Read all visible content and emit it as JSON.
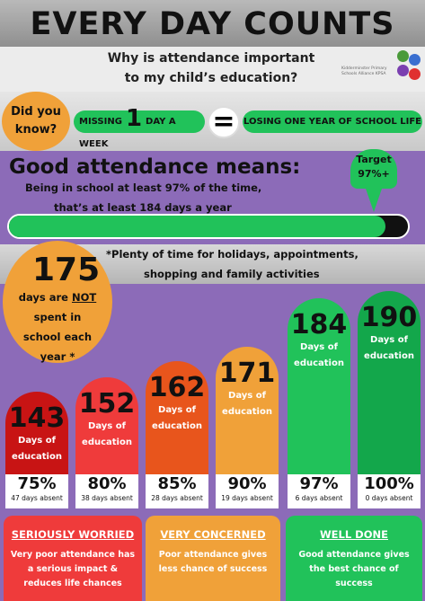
{
  "title": "EVERY DAY COUNTS",
  "subtitle": [
    "Why is attendance important",
    "to my child’s education?"
  ],
  "school_name": "Kidderminster Primary Schools Alliance KPSA",
  "logo_colors": [
    "#4a9a3a",
    "#3a6fd0",
    "#7a3fb0",
    "#e03030"
  ],
  "did_you_know": [
    "Did you",
    "know?"
  ],
  "missing_left": "MISSING",
  "missing_num": "1",
  "missing_right": "DAY A WEEK",
  "equals": "=",
  "losing": "LOSING ONE YEAR OF SCHOOL LIFE",
  "good_heading": "Good attendance means:",
  "good_lines": [
    "Being in school at least 97% of the time,",
    "that’s at least 184 days a year"
  ],
  "target_label": "Target",
  "target_value": "97%+",
  "target_fill_fraction": 0.97,
  "plenty": [
    "*Plenty of time for holidays, appointments,",
    "shopping and family activities"
  ],
  "not_spent_number": "175",
  "not_spent_lines": [
    "days are",
    "NOT",
    "spent in",
    "school each",
    "year *"
  ],
  "columns": [
    {
      "days": "143",
      "label1": "Days of",
      "label2": "education",
      "pct": "75%",
      "absent": "47 days absent",
      "color": "#c81414"
    },
    {
      "days": "152",
      "label1": "Days of",
      "label2": "education",
      "pct": "80%",
      "absent": "38 days absent",
      "color": "#ef3b3b"
    },
    {
      "days": "162",
      "label1": "Days of",
      "label2": "education",
      "pct": "85%",
      "absent": "28 days absent",
      "color": "#e8551c"
    },
    {
      "days": "171",
      "label1": "Days of",
      "label2": "education",
      "pct": "90%",
      "absent": "19 days absent",
      "color": "#f0a139"
    },
    {
      "days": "184",
      "label1": "Days of",
      "label2": "education",
      "pct": "97%",
      "absent": "6 days absent",
      "color": "#21c25a"
    },
    {
      "days": "190",
      "label1": "Days of",
      "label2": "education",
      "pct": "100%",
      "absent": "0 days absent",
      "color": "#13a74b"
    }
  ],
  "cards": [
    {
      "heading": "SERIOUSLY WORRIED",
      "text": "Very poor attendance has a serious impact & reduces life chances",
      "color": "#ef3b3b"
    },
    {
      "heading": "VERY CONCERNED",
      "text": "Poor attendance gives less chance of success",
      "color": "#f0a139"
    },
    {
      "heading": "WELL DONE",
      "text": "Good attendance gives the best chance of success",
      "color": "#21c25a"
    }
  ]
}
